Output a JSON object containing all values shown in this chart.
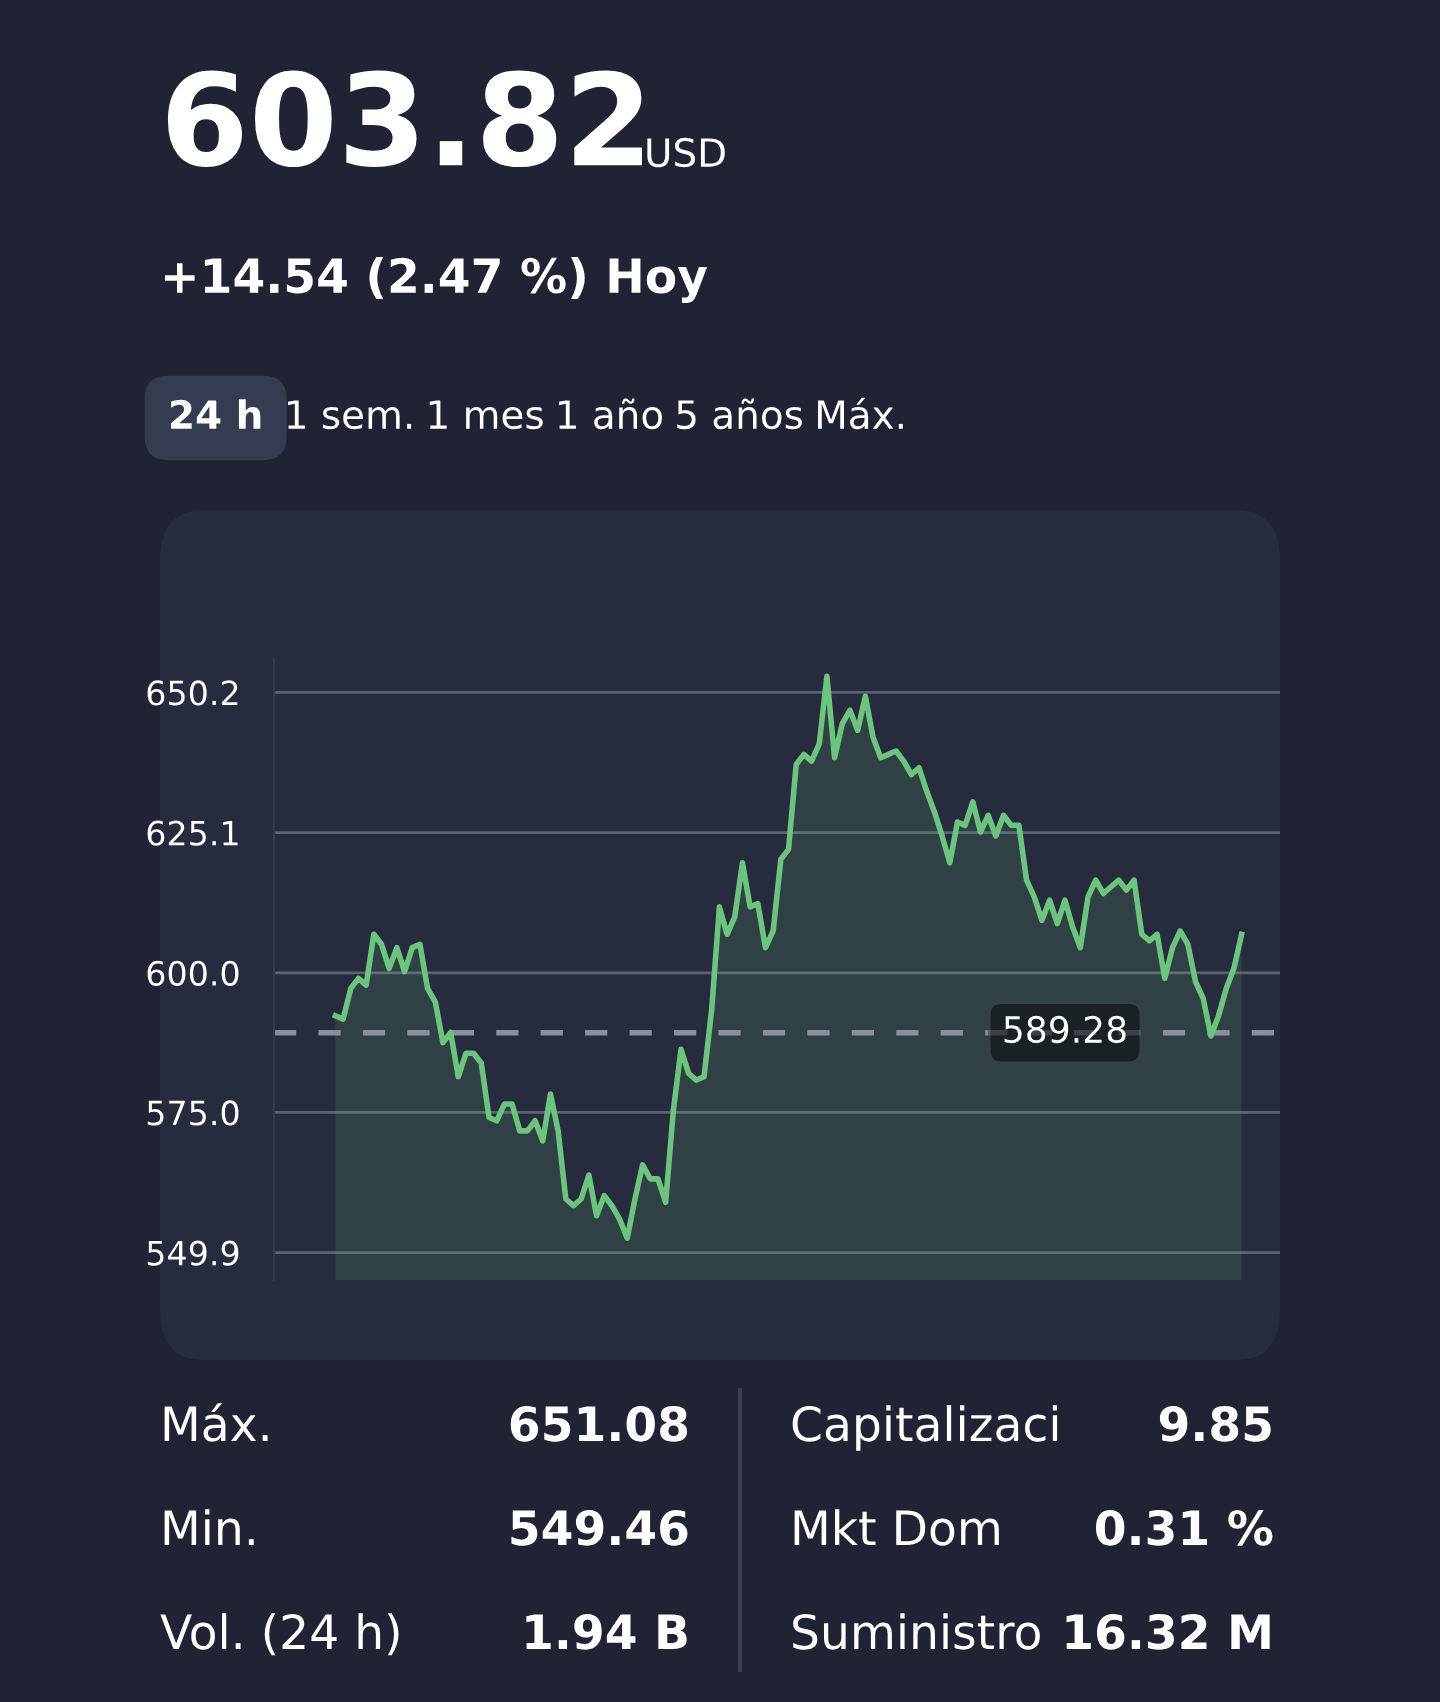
{
  "chart_data": [
    {
      "type": "area",
      "title": "603.82",
      "subtitle": "+14.54 (2.47 %) Hoy",
      "annotations": [
        "USD",
        "24 h",
        "1 sem.",
        "1 mes",
        "1 año",
        "5 años",
        "Máx."
      ],
      "categories": [
        null,
        null,
        null,
        null,
        null,
        null,
        null,
        null,
        null,
        null,
        null,
        null,
        null,
        null,
        null,
        null,
        null,
        null,
        null,
        null,
        null,
        null,
        null,
        null,
        null,
        null,
        null,
        null,
        null,
        null,
        null,
        null,
        null,
        null,
        null,
        null,
        null,
        null,
        null,
        null,
        null,
        null,
        null,
        null,
        null,
        null,
        null,
        null,
        null,
        null,
        null,
        null,
        null,
        null,
        null,
        null,
        null,
        null,
        null,
        null,
        null,
        null,
        null,
        null,
        null,
        null,
        null,
        null,
        null,
        null,
        null,
        null,
        null,
        null,
        null,
        null,
        null,
        null,
        null,
        null,
        null,
        null,
        null,
        null,
        null,
        null,
        null,
        null,
        null,
        null,
        null,
        null,
        null,
        null,
        null,
        null,
        null,
        null,
        null,
        null,
        null,
        null,
        null,
        null,
        null,
        null,
        null,
        null,
        null,
        null,
        null,
        null,
        null,
        null,
        null,
        null,
        null,
        null,
        null
      ],
      "series": [
        {
          "color": "#6cc47e",
          "values": [
            592.3,
            591.7,
            597.2,
            599.0,
            597.8,
            606.9,
            605.1,
            600.8,
            604.5,
            600.2,
            604.5,
            605.1,
            597.2,
            594.8,
            587.5,
            589.3,
            581.4,
            585.6,
            585.6,
            583.8,
            574.1,
            573.5,
            576.5,
            576.5,
            571.7,
            571.7,
            573.5,
            569.9,
            578.3,
            571.7,
            559.5,
            558.3,
            559.5,
            563.8,
            556.5,
            560.1,
            558.3,
            555.9,
            552.5,
            559.5,
            565.6,
            563.1,
            563.1,
            558.9,
            575.3,
            586.3,
            582.0,
            580.8,
            581.4,
            593.5,
            611.8,
            606.9,
            610.0,
            619.7,
            611.8,
            612.4,
            604.5,
            607.5,
            620.3,
            622.1,
            637.3,
            639.1,
            637.9,
            641.0,
            653.1,
            638.5,
            644.6,
            647.0,
            643.4,
            649.5,
            642.2,
            638.5,
            639.1,
            639.7,
            637.9,
            635.5,
            636.7,
            632.5,
            628.8,
            624.5,
            619.7,
            627.0,
            626.4,
            630.6,
            625.2,
            628.2,
            624.5,
            628.2,
            626.4,
            626.4,
            616.6,
            613.6,
            609.4,
            613.0,
            608.8,
            613.0,
            608.2,
            604.5,
            613.6,
            616.6,
            614.2,
            615.4,
            616.6,
            614.8,
            616.6,
            606.9,
            605.7,
            606.9,
            599.0,
            604.5,
            607.5,
            605.1,
            598.4,
            595.4,
            588.7,
            592.3,
            597.2,
            600.8,
            606.9
          ]
        }
      ],
      "ylim": [
        545.0,
        656.0
      ],
      "yticks": [
        549.9,
        {
          "value": 575.0,
          "label": "575.0"
        },
        {
          "value": 600.0,
          "label": "600.0"
        },
        625.1,
        650.2
      ],
      "grid": "y",
      "tick_labels": "y",
      "ref_lines": [
        {
          "axis": "y",
          "value": 589.28,
          "label": "589.28",
          "color": "#8a8fa0",
          "line_style": "dashed"
        }
      ]
    },
    {
      "type": "other",
      "annotations": [
        "Máx.",
        "651.08",
        "Min.",
        "549.46",
        "Vol. (24 h)",
        "1.94 B",
        "Capitalizaci",
        "9.85",
        "Mkt Dom",
        "0.31 %",
        "Suministro",
        "16.32 M"
      ]
    }
  ]
}
